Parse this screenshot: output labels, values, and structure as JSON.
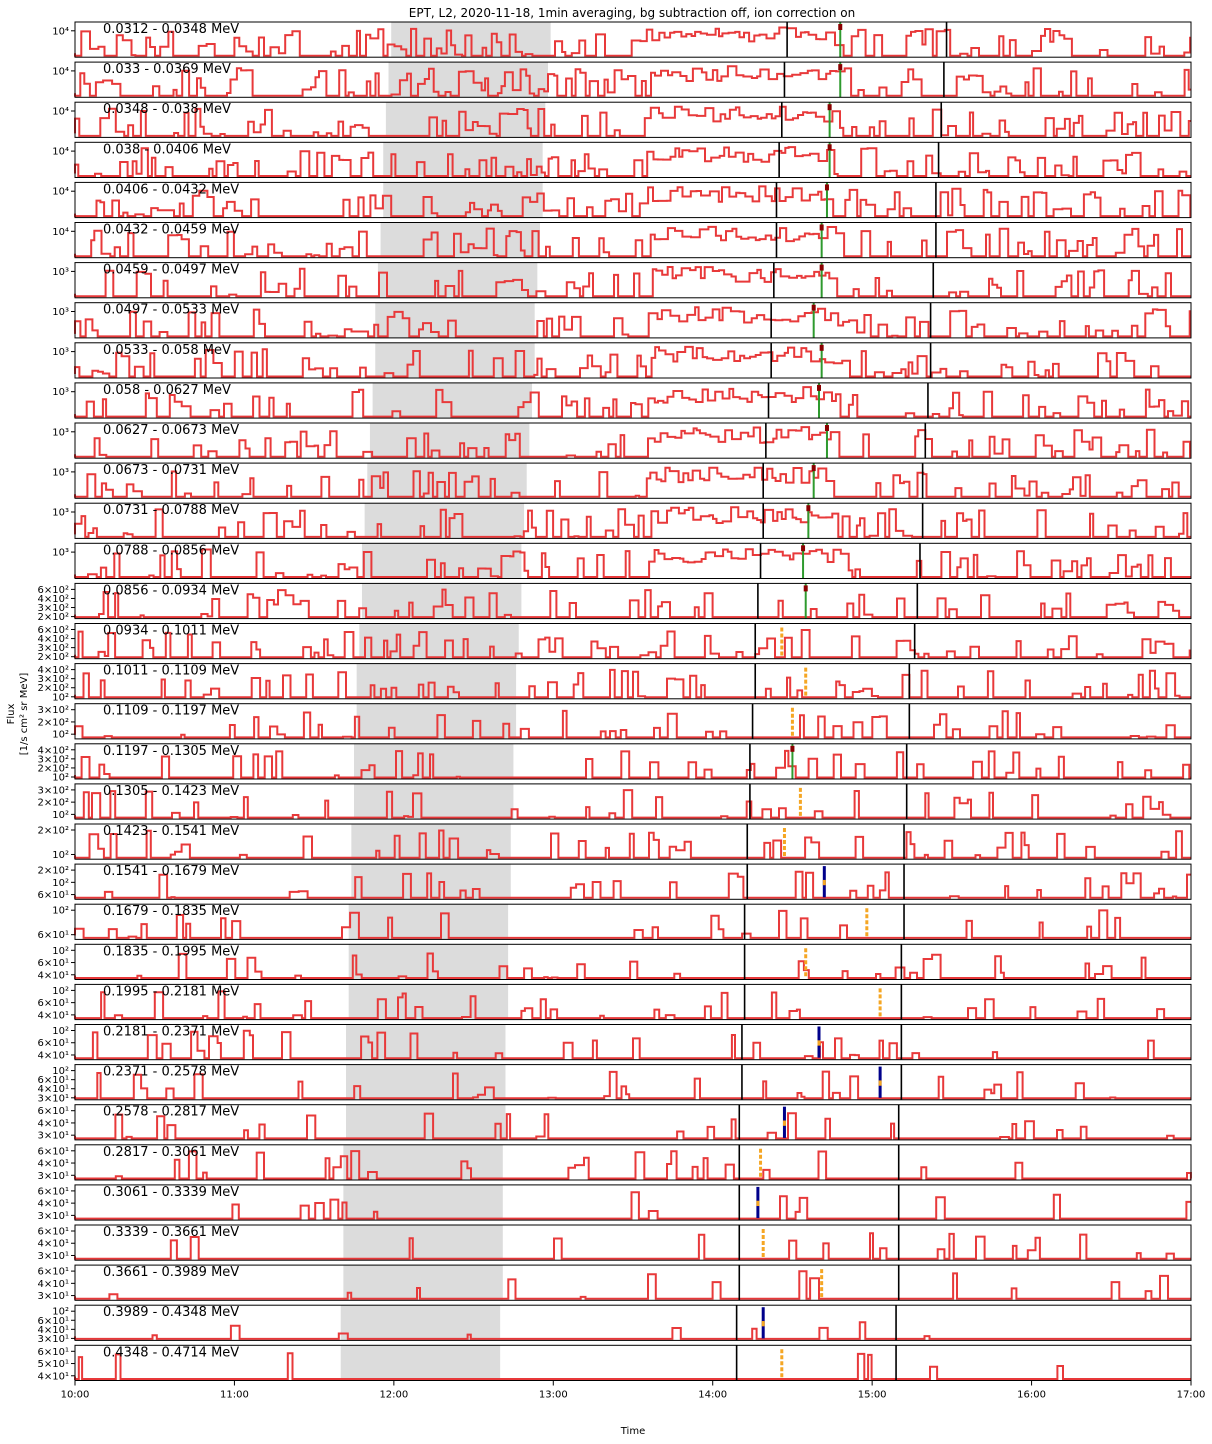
{
  "chart_data": {
    "type": "line",
    "title": "EPT, L2, 2020-11-18, 1min averaging, bg subtraction off, ion correction on",
    "xlabel": "Time",
    "ylabel_line1": "Flux",
    "ylabel_line2": "[1/s cm² sr MeV]",
    "xlim": [
      "10:00",
      "17:00"
    ],
    "x_ticks": [
      "10:00",
      "11:00",
      "12:00",
      "13:00",
      "14:00",
      "15:00",
      "16:00",
      "17:00"
    ],
    "yscale": "log",
    "colors": {
      "flux": "#e8393a",
      "shade": "#dcdcdc",
      "onset_marker": "#2e9a2e",
      "peak_marker": "#8b0000",
      "black_vline": "#000000",
      "orange_marker": "#f5a623",
      "blue_marker": "#00008b"
    },
    "series": [
      {
        "label": "0.0312 - 0.0348 MeV",
        "yticks": [
          "10⁴"
        ],
        "shade": [
          "11:59",
          "12:59"
        ],
        "black_lines": [
          "14:28",
          "15:28"
        ],
        "onset": {
          "time": "14:48",
          "color": "green"
        }
      },
      {
        "label": "0.033 - 0.0369 MeV",
        "yticks": [
          "10⁴"
        ],
        "shade": [
          "11:58",
          "12:58"
        ],
        "black_lines": [
          "14:27",
          "15:27"
        ],
        "onset": {
          "time": "14:48",
          "color": "green"
        }
      },
      {
        "label": "0.0348 - 0.038 MeV",
        "yticks": [
          "10⁴"
        ],
        "shade": [
          "11:57",
          "12:57"
        ],
        "black_lines": [
          "14:26",
          "15:26"
        ],
        "onset": {
          "time": "14:44",
          "color": "green"
        }
      },
      {
        "label": "0.038 - 0.0406 MeV",
        "yticks": [
          "10⁴"
        ],
        "shade": [
          "11:56",
          "12:56"
        ],
        "black_lines": [
          "14:25",
          "15:25"
        ],
        "onset": {
          "time": "14:44",
          "color": "green"
        }
      },
      {
        "label": "0.0406 - 0.0432 MeV",
        "yticks": [
          "10⁴"
        ],
        "shade": [
          "11:56",
          "12:56"
        ],
        "black_lines": [
          "14:24",
          "15:24"
        ],
        "onset": {
          "time": "14:43",
          "color": "green"
        }
      },
      {
        "label": "0.0432 - 0.0459 MeV",
        "yticks": [
          "10⁴"
        ],
        "shade": [
          "11:55",
          "12:55"
        ],
        "black_lines": [
          "14:24",
          "15:24"
        ],
        "onset": {
          "time": "14:41",
          "color": "green"
        }
      },
      {
        "label": "0.0459 - 0.0497 MeV",
        "yticks": [
          "10³"
        ],
        "shade": [
          "11:54",
          "12:54"
        ],
        "black_lines": [
          "14:23",
          "15:23"
        ],
        "onset": {
          "time": "14:41",
          "color": "green"
        }
      },
      {
        "label": "0.0497 - 0.0533 MeV",
        "yticks": [
          "10³"
        ],
        "shade": [
          "11:53",
          "12:53"
        ],
        "black_lines": [
          "14:22",
          "15:22"
        ],
        "onset": {
          "time": "14:38",
          "color": "green"
        }
      },
      {
        "label": "0.0533 - 0.058 MeV",
        "yticks": [
          "10³"
        ],
        "shade": [
          "11:53",
          "12:53"
        ],
        "black_lines": [
          "14:22",
          "15:22"
        ],
        "onset": {
          "time": "14:41",
          "color": "green"
        }
      },
      {
        "label": "0.058 - 0.0627 MeV",
        "yticks": [
          "10³"
        ],
        "shade": [
          "11:52",
          "12:52"
        ],
        "black_lines": [
          "14:21",
          "15:21"
        ],
        "onset": {
          "time": "14:40",
          "color": "green"
        }
      },
      {
        "label": "0.0627 - 0.0673 MeV",
        "yticks": [
          "10³"
        ],
        "shade": [
          "11:51",
          "12:51"
        ],
        "black_lines": [
          "14:20",
          "15:20"
        ],
        "onset": {
          "time": "14:43",
          "color": "green"
        }
      },
      {
        "label": "0.0673 - 0.0731 MeV",
        "yticks": [
          "10³"
        ],
        "shade": [
          "11:50",
          "12:50"
        ],
        "black_lines": [
          "14:19",
          "15:19"
        ],
        "onset": {
          "time": "14:38",
          "color": "green"
        }
      },
      {
        "label": "0.0731 - 0.0788 MeV",
        "yticks": [
          "10³"
        ],
        "shade": [
          "11:49",
          "12:49"
        ],
        "black_lines": [
          "14:19",
          "15:19"
        ],
        "onset": {
          "time": "14:36",
          "color": "green"
        }
      },
      {
        "label": "0.0788 - 0.0856 MeV",
        "yticks": [
          "10³"
        ],
        "shade": [
          "11:48",
          "12:48"
        ],
        "black_lines": [
          "14:18",
          "15:18"
        ],
        "onset": {
          "time": "14:34",
          "color": "green"
        }
      },
      {
        "label": "0.0856 - 0.0934 MeV",
        "yticks": [
          "6×10²",
          "4×10²",
          "3×10²",
          "2×10²"
        ],
        "shade": [
          "11:48",
          "12:48"
        ],
        "black_lines": [
          "14:17",
          "15:17"
        ],
        "onset": {
          "time": "14:35",
          "color": "green"
        }
      },
      {
        "label": "0.0934 - 0.1011 MeV",
        "yticks": [
          "6×10²",
          "4×10²",
          "3×10²",
          "2×10²"
        ],
        "shade": [
          "11:47",
          "12:47"
        ],
        "black_lines": [
          "14:16",
          "15:16"
        ],
        "onset": {
          "time": "14:26",
          "color": "orange"
        }
      },
      {
        "label": "0.1011 - 0.1109 MeV",
        "yticks": [
          "4×10²",
          "3×10²",
          "2×10²",
          "10²"
        ],
        "shade": [
          "11:46",
          "12:46"
        ],
        "black_lines": [
          "14:16",
          "15:14"
        ],
        "onset": {
          "time": "14:35",
          "color": "orange"
        }
      },
      {
        "label": "0.1109 - 0.1197 MeV",
        "yticks": [
          "3×10²",
          "2×10²",
          "10²"
        ],
        "shade": [
          "11:46",
          "12:46"
        ],
        "black_lines": [
          "14:15",
          "15:14"
        ],
        "onset": {
          "time": "14:30",
          "color": "orange"
        }
      },
      {
        "label": "0.1197 - 0.1305 MeV",
        "yticks": [
          "4×10²",
          "3×10²",
          "2×10²",
          "10²"
        ],
        "shade": [
          "11:45",
          "12:45"
        ],
        "black_lines": [
          "14:14",
          "15:13"
        ],
        "onset": {
          "time": "14:30",
          "color": "green"
        }
      },
      {
        "label": "0.1305 - 0.1423 MeV",
        "yticks": [
          "3×10²",
          "2×10²",
          "10²"
        ],
        "shade": [
          "11:45",
          "12:45"
        ],
        "black_lines": [
          "14:14",
          "15:13"
        ],
        "onset": {
          "time": "14:33",
          "color": "orange"
        }
      },
      {
        "label": "0.1423 - 0.1541 MeV",
        "yticks": [
          "2×10²",
          "10²"
        ],
        "shade": [
          "11:44",
          "12:44"
        ],
        "black_lines": [
          "14:13",
          "15:12"
        ],
        "onset": {
          "time": "14:27",
          "color": "orange"
        }
      },
      {
        "label": "0.1541 - 0.1679 MeV",
        "yticks": [
          "2×10²",
          "10²",
          "6×10¹"
        ],
        "shade": [
          "11:44",
          "12:44"
        ],
        "black_lines": [
          "14:13",
          "15:12"
        ],
        "onset": {
          "time": "14:42",
          "color": "blue"
        }
      },
      {
        "label": "0.1679 - 0.1835 MeV",
        "yticks": [
          "10²",
          "6×10¹"
        ],
        "shade": [
          "11:43",
          "12:43"
        ],
        "black_lines": [
          "14:12",
          "15:12"
        ],
        "onset": {
          "time": "14:58",
          "color": "orange"
        }
      },
      {
        "label": "0.1835 - 0.1995 MeV",
        "yticks": [
          "10²",
          "6×10¹",
          "4×10¹"
        ],
        "shade": [
          "11:43",
          "12:43"
        ],
        "black_lines": [
          "14:12",
          "15:11"
        ],
        "onset": {
          "time": "14:35",
          "color": "orange"
        }
      },
      {
        "label": "0.1995 - 0.2181 MeV",
        "yticks": [
          "10²",
          "6×10¹",
          "4×10¹"
        ],
        "shade": [
          "11:43",
          "12:43"
        ],
        "black_lines": [
          "14:12",
          "15:11"
        ],
        "onset": {
          "time": "15:03",
          "color": "orange"
        }
      },
      {
        "label": "0.2181 - 0.2371 MeV",
        "yticks": [
          "10²",
          "6×10¹",
          "4×10¹"
        ],
        "shade": [
          "11:42",
          "12:42"
        ],
        "black_lines": [
          "14:11",
          "15:11"
        ],
        "onset": {
          "time": "14:40",
          "color": "blue"
        }
      },
      {
        "label": "0.2371 - 0.2578 MeV",
        "yticks": [
          "10²",
          "6×10¹",
          "4×10¹",
          "3×10¹"
        ],
        "shade": [
          "11:42",
          "12:42"
        ],
        "black_lines": [
          "14:11",
          "15:11"
        ],
        "onset": {
          "time": "15:03",
          "color": "blue"
        }
      },
      {
        "label": "0.2578 - 0.2817 MeV",
        "yticks": [
          "6×10¹",
          "4×10¹",
          "3×10¹"
        ],
        "shade": [
          "11:42",
          "12:42"
        ],
        "black_lines": [
          "14:10",
          "15:10"
        ],
        "onset": {
          "time": "14:27",
          "color": "blue"
        }
      },
      {
        "label": "0.2817 - 0.3061 MeV",
        "yticks": [
          "6×10¹",
          "4×10¹",
          "3×10¹"
        ],
        "shade": [
          "11:41",
          "12:41"
        ],
        "black_lines": [
          "14:10",
          "15:10"
        ],
        "onset": {
          "time": "14:18",
          "color": "orange"
        }
      },
      {
        "label": "0.3061 - 0.3339 MeV",
        "yticks": [
          "6×10¹",
          "4×10¹",
          "3×10¹"
        ],
        "shade": [
          "11:41",
          "12:41"
        ],
        "black_lines": [
          "14:10",
          "15:10"
        ],
        "onset": {
          "time": "14:17",
          "color": "blue"
        }
      },
      {
        "label": "0.3339 - 0.3661 MeV",
        "yticks": [
          "6×10¹",
          "4×10¹",
          "3×10¹"
        ],
        "shade": [
          "11:41",
          "12:41"
        ],
        "black_lines": [
          "14:10",
          "15:10"
        ],
        "onset": {
          "time": "14:19",
          "color": "orange"
        }
      },
      {
        "label": "0.3661 - 0.3989 MeV",
        "yticks": [
          "6×10¹",
          "4×10¹",
          "3×10¹"
        ],
        "shade": [
          "11:41",
          "12:41"
        ],
        "black_lines": [
          "14:10",
          "15:10"
        ],
        "onset": {
          "time": "14:41",
          "color": "orange"
        }
      },
      {
        "label": "0.3989 - 0.4348 MeV",
        "yticks": [
          "10²",
          "6×10¹",
          "4×10¹",
          "3×10¹"
        ],
        "shade": [
          "11:40",
          "12:40"
        ],
        "black_lines": [
          "14:09",
          "15:09"
        ],
        "onset": {
          "time": "14:19",
          "color": "blue"
        }
      },
      {
        "label": "0.4348 - 0.4714 MeV",
        "yticks": [
          "6×10¹",
          "5×10¹",
          "4×10¹"
        ],
        "shade": [
          "11:40",
          "12:40"
        ],
        "black_lines": [
          "14:09",
          "15:09"
        ],
        "onset": {
          "time": "14:26",
          "color": "orange"
        }
      }
    ]
  }
}
